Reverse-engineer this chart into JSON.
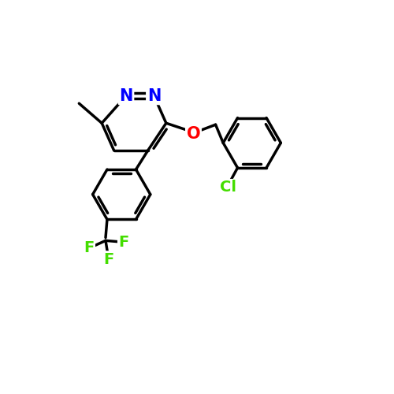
{
  "background_color": "#ffffff",
  "line_color": "#000000",
  "line_width": 2.5,
  "atom_colors": {
    "N": "#0000ff",
    "O": "#ff0000",
    "Cl": "#44dd00",
    "F": "#44dd00",
    "C": "#000000"
  },
  "font_size": 14,
  "figsize": [
    5.0,
    5.0
  ],
  "dpi": 100
}
